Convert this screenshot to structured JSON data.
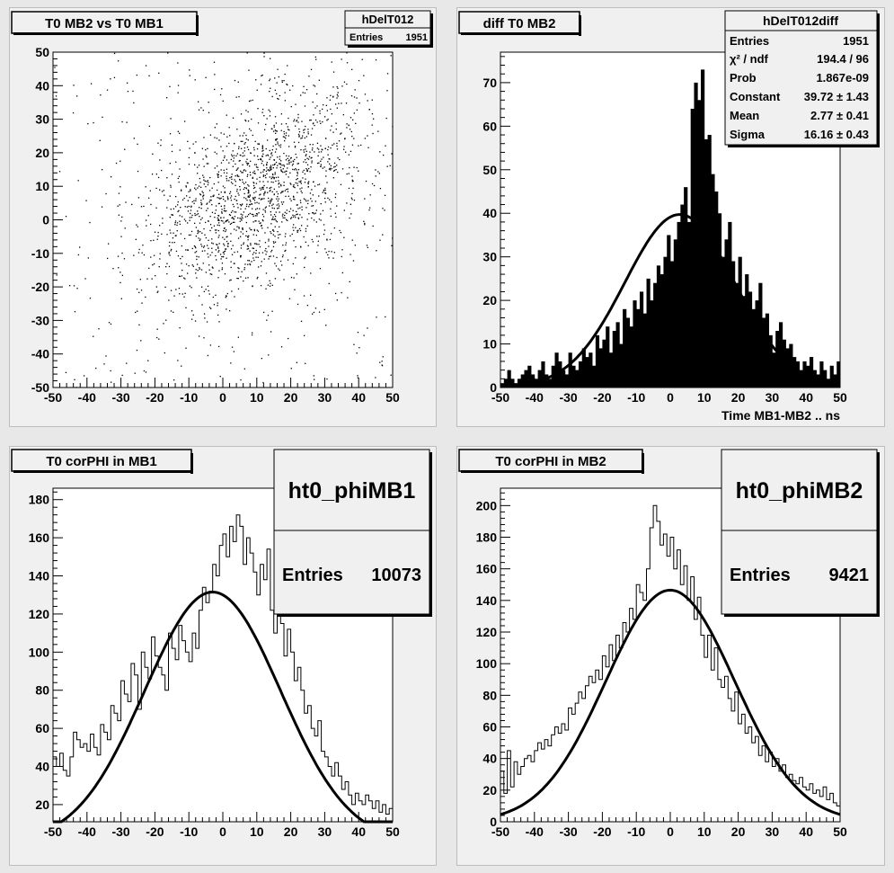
{
  "colors": {
    "pad": "#f0f0f0",
    "frame": "#000000",
    "marks": "#000000"
  },
  "chart_data": [
    {
      "type": "scatter",
      "title": "T0 MB2 vs T0 MB1",
      "stats": {
        "name": "hDelT012",
        "rows": [
          [
            "Entries",
            "1951"
          ]
        ]
      },
      "xlim": [
        -50,
        50
      ],
      "ylim": [
        -50,
        50
      ],
      "xticks": [
        -50,
        -40,
        -30,
        -20,
        -10,
        0,
        10,
        20,
        30,
        40,
        50
      ],
      "yticks": [
        -50,
        -40,
        -30,
        -20,
        -10,
        0,
        10,
        20,
        30,
        40,
        50
      ],
      "xlabel": "",
      "ylabel": "",
      "n_points": 1951,
      "distribution": {
        "center_x": 10,
        "center_y": 8,
        "sigma_x": 16,
        "sigma_y": 16,
        "correlation": 0.45
      }
    },
    {
      "type": "bar",
      "title": "diff T0 MB2",
      "xlabel": "Time MB1-MB2  ..  ns",
      "stats": {
        "name": "hDelT012diff",
        "rows": [
          [
            "Entries",
            "1951"
          ],
          [
            "χ² / ndf",
            "194.4 / 96"
          ],
          [
            "Prob",
            "1.867e-09"
          ],
          [
            "Constant",
            "39.72 ± 1.43"
          ],
          [
            "Mean",
            "2.77 ± 0.41"
          ],
          [
            "Sigma",
            "16.16 ± 0.43"
          ]
        ]
      },
      "xlim": [
        -50,
        50
      ],
      "ylim": [
        0,
        77
      ],
      "xticks": [
        -50,
        -40,
        -30,
        -20,
        -10,
        0,
        10,
        20,
        30,
        40,
        50
      ],
      "yticks": [
        0,
        10,
        20,
        30,
        40,
        50,
        60,
        70
      ],
      "bin_edges": [
        -50,
        50
      ],
      "n_bins": 100,
      "values": [
        1,
        2,
        4,
        2,
        1,
        2,
        3,
        4,
        5,
        3,
        2,
        4,
        6,
        3,
        2,
        5,
        8,
        6,
        4,
        3,
        8,
        5,
        4,
        6,
        9,
        7,
        8,
        5,
        12,
        9,
        11,
        14,
        8,
        13,
        15,
        10,
        18,
        16,
        14,
        20,
        18,
        22,
        17,
        25,
        20,
        24,
        28,
        26,
        30,
        35,
        29,
        34,
        38,
        42,
        46,
        38,
        64,
        70,
        66,
        73,
        57,
        58,
        49,
        45,
        40,
        30,
        34,
        38,
        29,
        24,
        30,
        21,
        26,
        22,
        18,
        20,
        24,
        16,
        17,
        12,
        8,
        13,
        15,
        11,
        9,
        10,
        7,
        6,
        4,
        6,
        5,
        7,
        4,
        3,
        6,
        4,
        2,
        5,
        3,
        6
      ],
      "fit": {
        "type": "gaussian",
        "constant": 39.72,
        "mean": 2.77,
        "sigma": 16.16
      }
    },
    {
      "type": "bar",
      "title": "T0 corPHI in MB1",
      "stats": {
        "name": "ht0_phiMB1",
        "rows": [
          [
            "Entries",
            "10073"
          ]
        ]
      },
      "xlim": [
        -50,
        50
      ],
      "ylim": [
        11,
        186
      ],
      "xticks": [
        -50,
        -40,
        -30,
        -20,
        -10,
        0,
        10,
        20,
        30,
        40,
        50
      ],
      "yticks": [
        20,
        40,
        60,
        80,
        100,
        120,
        140,
        160,
        180
      ],
      "bin_edges": [
        -50,
        50
      ],
      "n_bins": 100,
      "values": [
        45,
        40,
        47,
        38,
        35,
        45,
        58,
        54,
        50,
        52,
        48,
        57,
        50,
        46,
        62,
        58,
        54,
        72,
        68,
        64,
        85,
        78,
        74,
        94,
        88,
        70,
        100,
        92,
        86,
        108,
        98,
        92,
        88,
        80,
        110,
        102,
        96,
        114,
        106,
        100,
        95,
        110,
        102,
        122,
        134,
        126,
        132,
        146,
        140,
        156,
        162,
        150,
        166,
        158,
        172,
        166,
        146,
        160,
        152,
        142,
        130,
        146,
        138,
        154,
        122,
        110,
        124,
        115,
        98,
        112,
        100,
        85,
        92,
        80,
        68,
        72,
        60,
        56,
        64,
        48,
        45,
        40,
        35,
        42,
        35,
        28,
        32,
        25,
        20,
        26,
        22,
        20,
        25,
        22,
        18,
        22,
        16,
        20,
        15,
        18
      ],
      "fit": {
        "type": "gaussian",
        "constant": 131.5,
        "mean": -3,
        "sigma": 20
      }
    },
    {
      "type": "bar",
      "title": "T0 corPHI in MB2",
      "stats": {
        "name": "ht0_phiMB2",
        "rows": [
          [
            "Entries",
            "9421"
          ]
        ]
      },
      "xlim": [
        -50,
        50
      ],
      "ylim": [
        0,
        211
      ],
      "xticks": [
        -50,
        -40,
        -30,
        -20,
        -10,
        0,
        10,
        20,
        30,
        40,
        50
      ],
      "yticks": [
        0,
        20,
        40,
        60,
        80,
        100,
        120,
        140,
        160,
        180,
        200
      ],
      "bin_edges": [
        -50,
        50
      ],
      "n_bins": 100,
      "values": [
        32,
        18,
        45,
        22,
        38,
        30,
        35,
        40,
        42,
        38,
        45,
        50,
        46,
        52,
        48,
        55,
        60,
        56,
        62,
        58,
        72,
        68,
        75,
        82,
        78,
        86,
        92,
        88,
        96,
        90,
        105,
        98,
        112,
        102,
        118,
        110,
        126,
        120,
        135,
        128,
        150,
        145,
        140,
        160,
        186,
        200,
        190,
        175,
        182,
        168,
        180,
        160,
        172,
        150,
        162,
        140,
        155,
        128,
        142,
        118,
        104,
        118,
        96,
        110,
        90,
        85,
        92,
        78,
        70,
        82,
        62,
        68,
        56,
        60,
        50,
        54,
        42,
        48,
        38,
        44,
        35,
        40,
        32,
        36,
        28,
        30,
        26,
        24,
        28,
        22,
        20,
        24,
        18,
        20,
        16,
        22,
        14,
        18,
        12,
        10
      ],
      "fit": {
        "type": "gaussian",
        "constant": 146.5,
        "mean": 0,
        "sigma": 19
      }
    }
  ]
}
